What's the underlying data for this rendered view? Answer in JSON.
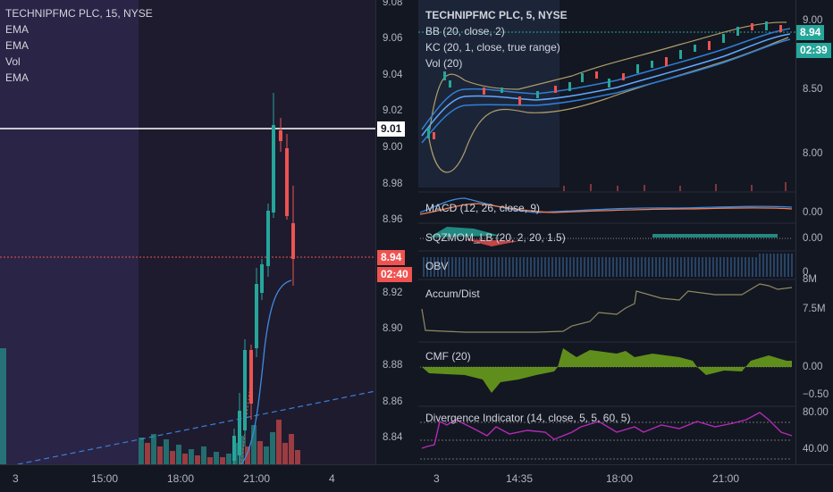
{
  "left_chart": {
    "legend": [
      "TECHNIPFMC PLC, 15, NYSE",
      "EMA",
      "EMA",
      "Vol",
      "EMA"
    ],
    "price_ticks": [
      "9.08",
      "9.06",
      "9.04",
      "9.02",
      "9.00",
      "8.98",
      "8.96",
      "8.92",
      "8.90",
      "8.88",
      "8.86",
      "8.84"
    ],
    "crosshair_price": "9.01",
    "last_price": "8.94",
    "countdown": "02:40",
    "time_labels": [
      "3",
      "15:00",
      "18:00",
      "21:00",
      "4"
    ]
  },
  "right_chart": {
    "legend": [
      "TECHNIPFMC PLC, 5, NYSE",
      "BB (20, close, 2)",
      "KC (20, 1, close, true range)",
      "Vol (20)"
    ],
    "price_ticks": [
      "9.00",
      "8.50",
      "8.00"
    ],
    "last_price": "8.94",
    "countdown": "02:39",
    "time_labels": [
      "3",
      "14:35",
      "18:00",
      "21:00"
    ],
    "indicators": [
      {
        "title": "MACD (12, 26, close, 9)",
        "value": "0.00"
      },
      {
        "title": "SQZMOM_LB (20, 2, 20, 1.5)",
        "value": "0.00"
      },
      {
        "title": "OBV",
        "value": "0"
      },
      {
        "title": "Accum/Dist",
        "ticks": [
          "8M",
          "7.5M"
        ]
      },
      {
        "title": "CMF (20)",
        "ticks": [
          "0.00",
          "−0.50"
        ]
      },
      {
        "title": "Divergence Indicator (14, close, 5, 5, 60, 5)",
        "ticks": [
          "80.00",
          "40.00"
        ]
      }
    ]
  },
  "colors": {
    "up": "#26a69a",
    "down": "#ef5350",
    "last_price_tag": "#ef5350",
    "right_price_tag": "#26a69a",
    "cmf_fill": "#6fa31c",
    "divergence_line": "#b52ab5",
    "accum_line": "#8f8a62"
  }
}
